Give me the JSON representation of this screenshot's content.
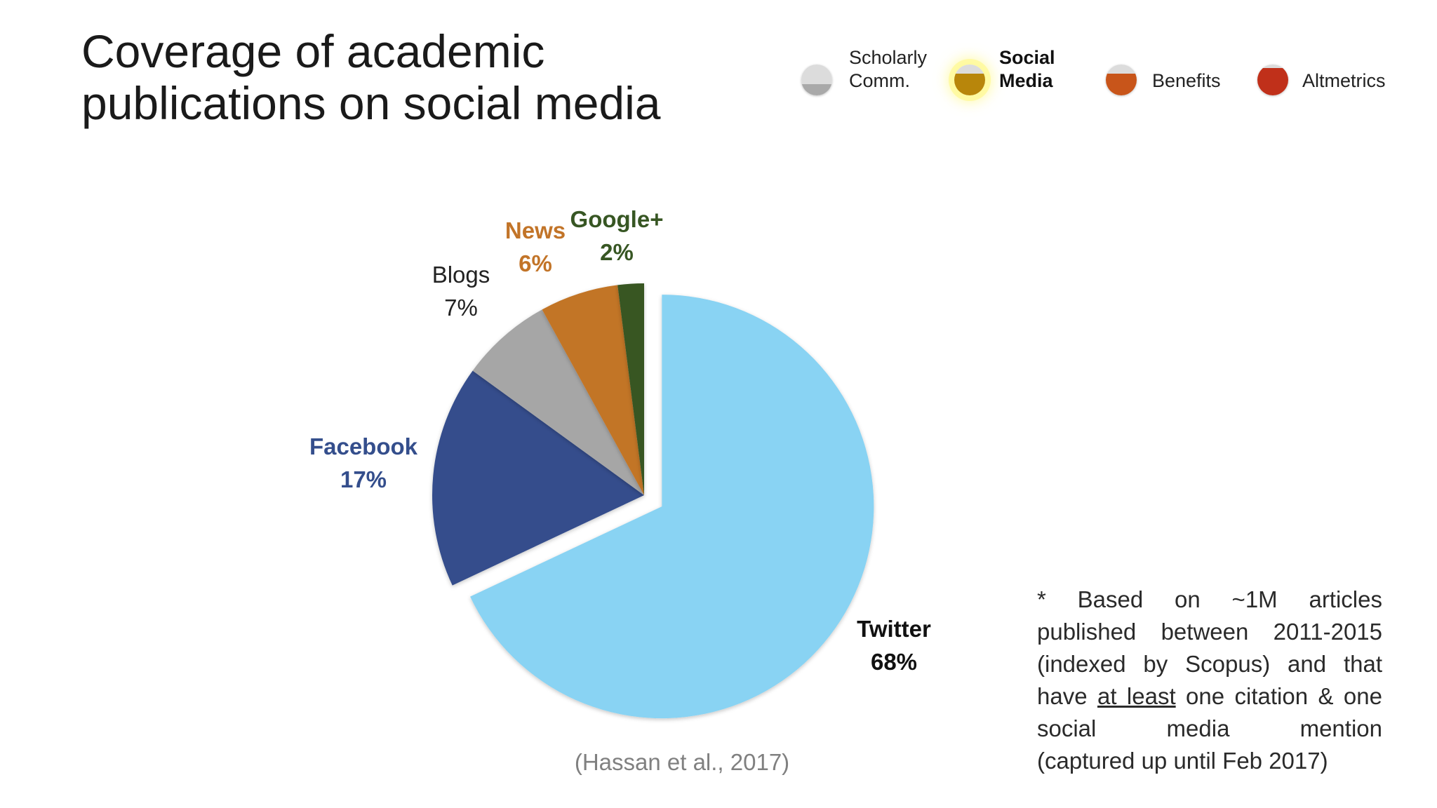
{
  "title": {
    "line1": "Coverage of academic",
    "line2": "publications on social media"
  },
  "nav": {
    "items": [
      {
        "label_line1": "Scholarly",
        "label_line2": "Comm.",
        "color": "#a9a9a9",
        "active": false
      },
      {
        "label_line1": "Social",
        "label_line2": "Media",
        "color": "#b8860b",
        "active": true
      },
      {
        "label": "Benefits",
        "color": "#c8551a",
        "active": false
      },
      {
        "label": "Altmetrics",
        "color": "#c0301a",
        "active": false
      }
    ]
  },
  "chart_data": {
    "type": "pie",
    "slices": [
      {
        "name": "Twitter",
        "value": 68,
        "label": "68%",
        "color": "#89d3f3",
        "label_color": "#111111",
        "exploded": true
      },
      {
        "name": "Facebook",
        "value": 17,
        "label": "17%",
        "color": "#344e8c",
        "label_color": "#344e8c",
        "exploded": false
      },
      {
        "name": "Blogs",
        "value": 7,
        "label": "7%",
        "color": "#a6a6a6",
        "label_color": "#222222",
        "exploded": false
      },
      {
        "name": "News",
        "value": 6,
        "label": "6%",
        "color": "#c27428",
        "label_color": "#c27428",
        "exploded": false
      },
      {
        "name": "Google+",
        "value": 2,
        "label": "2%",
        "color": "#375623",
        "label_color": "#375623",
        "exploded": false
      }
    ]
  },
  "citation": "(Hassan et al., 2017)",
  "note": {
    "part1": "* Based on ~1M articles published between 2011-2015 (indexed by Scopus) and that have ",
    "underlined": "at least",
    "part2": " one citation & one social media mention",
    "last_line": "(captured up until Feb 2017)"
  }
}
